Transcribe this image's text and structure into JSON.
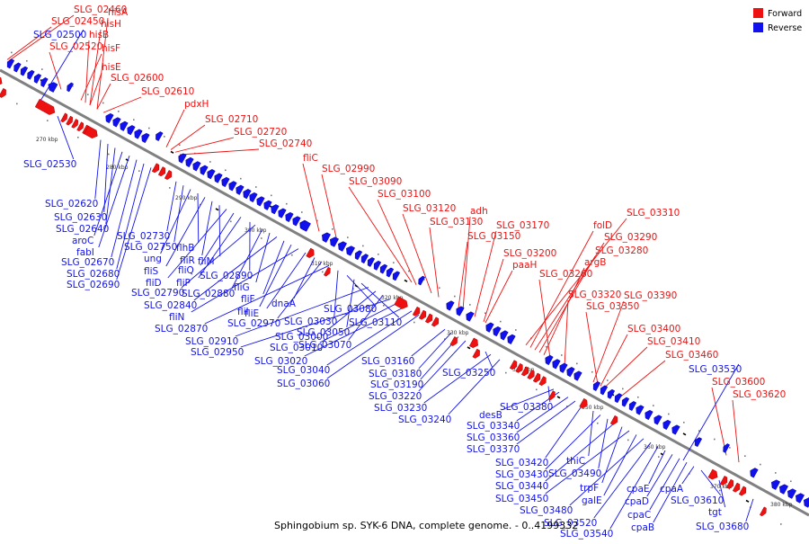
{
  "caption": "Sphingobium sp. SYK-6 DNA, complete genome. - 0..4199332",
  "legend": [
    {
      "label": "Forward",
      "color": "#ee1111"
    },
    {
      "label": "Reverse",
      "color": "#1111ee"
    }
  ],
  "colors": {
    "forward": "#ee1111",
    "reverse": "#1111ee",
    "axis": "#808080"
  },
  "ticks": [
    "270 kbp",
    "280 kbp",
    "290 kbp",
    "300 kbp",
    "310 kbp",
    "320 kbp",
    "330 kbp",
    "340 kbp",
    "350 kbp",
    "360 kbp",
    "370 kbp",
    "380 kbp"
  ],
  "forward_labels": [
    "SLG_02460",
    "SLG_02450",
    "hisA",
    "hisH",
    "hisB",
    "SLG_02520",
    "hisF",
    "hisE",
    "SLG_02600",
    "SLG_02610",
    "pdxH",
    "SLG_02710",
    "SLG_02720",
    "SLG_02740",
    "fliC",
    "SLG_02990",
    "SLG_03090",
    "SLG_03100",
    "SLG_03120",
    "adh",
    "SLG_03130",
    "SLG_03170",
    "SLG_03150",
    "SLG_03310",
    "folD",
    "SLG_03290",
    "SLG_03280",
    "SLG_03200",
    "paaH",
    "argB",
    "SLG_03260",
    "SLG_03320",
    "SLG_03390",
    "SLG_03350",
    "SLG_03400",
    "SLG_03410",
    "SLG_03460",
    "SLG_03600",
    "SLG_03620"
  ],
  "reverse_labels": [
    "SLG_02500",
    "SLG_02530",
    "SLG_02620",
    "SLG_02630",
    "SLG_02640",
    "aroC",
    "fabI",
    "SLG_02670",
    "SLG_02680",
    "SLG_02690",
    "SLG_02730",
    "SLG_02750",
    "ung",
    "flhB",
    "fliS",
    "fliR",
    "fliM",
    "fliD",
    "fliQ",
    "fliP",
    "SLG_02890",
    "SLG_02790",
    "SLG_02880",
    "fliG",
    "SLG_02840",
    "fliF",
    "fliI",
    "fliN",
    "fliE",
    "dnaA",
    "SLG_02970",
    "SLG_02870",
    "SLG_03030",
    "SLG_03080",
    "SLG_03050",
    "SLG_03110",
    "SLG_02910",
    "SLG_03000",
    "SLG_03070",
    "SLG_02950",
    "SLG_03010",
    "SLG_03020",
    "SLG_03040",
    "SLG_03060",
    "SLG_03160",
    "SLG_03180",
    "SLG_03250",
    "SLG_03190",
    "SLG_03220",
    "SLG_03230",
    "SLG_03240",
    "SLG_03380",
    "desB",
    "SLG_03340",
    "SLG_03360",
    "SLG_03370",
    "SLG_03530",
    "SLG_03420",
    "thiC",
    "SLG_03430",
    "SLG_03490",
    "SLG_03440",
    "trpF",
    "SLG_03450",
    "galE",
    "SLG_03480",
    "cpaE",
    "cpaA",
    "SLG_03520",
    "cpaD",
    "SLG_03610",
    "cpaC",
    "SLG_03540",
    "cpaB",
    "tgt",
    "SLG_03680"
  ]
}
